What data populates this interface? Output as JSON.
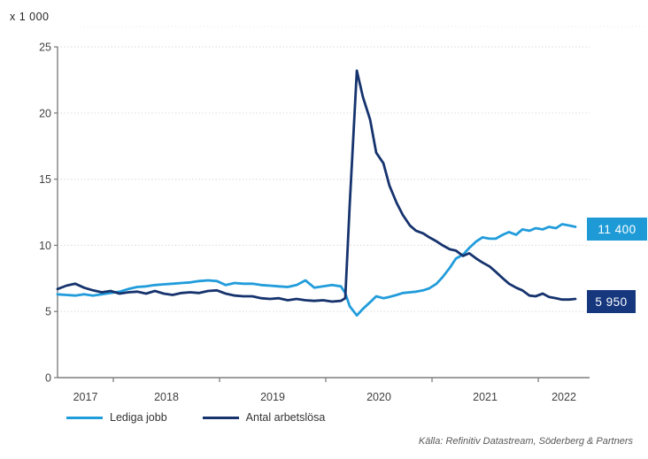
{
  "chart": {
    "unit_label": "x 1 000",
    "legend": [
      {
        "label": "Lediga jobb",
        "color": "#219CDB"
      },
      {
        "label": "Antal arbetslösa",
        "color": "#16336E"
      }
    ],
    "end_labels": [
      {
        "text": "11 400",
        "bg": "#1E9BD7"
      },
      {
        "text": "5 950",
        "bg": "#16377E"
      }
    ],
    "source": "Källa: Refinitiv Datastream, Söderberg & Partners"
  },
  "chart_data": {
    "type": "line",
    "title": "",
    "ylabel": "x 1 000",
    "xlabel": "",
    "grid": "horizontal-dotted",
    "legend_position": "bottom-left",
    "xlim": [
      2017.475,
      2022.483
    ],
    "ylim": [
      0,
      25
    ],
    "yticks": [
      0,
      5,
      10,
      15,
      20,
      25
    ],
    "xticks": [
      2018,
      2019,
      2020,
      2021,
      2022
    ],
    "xtick_labels": [
      "2017",
      "2018",
      "2019",
      "2020",
      "2021",
      "2022"
    ],
    "x": [
      2017.475,
      2017.558,
      2017.642,
      2017.725,
      2017.808,
      2017.892,
      2017.975,
      2018.058,
      2018.142,
      2018.225,
      2018.308,
      2018.392,
      2018.475,
      2018.558,
      2018.642,
      2018.725,
      2018.808,
      2018.892,
      2018.975,
      2019.058,
      2019.142,
      2019.225,
      2019.308,
      2019.392,
      2019.475,
      2019.558,
      2019.642,
      2019.725,
      2019.808,
      2019.892,
      2019.975,
      2020.058,
      2020.142,
      2020.183,
      2020.225,
      2020.292,
      2020.35,
      2020.417,
      2020.475,
      2020.542,
      2020.6,
      2020.667,
      2020.725,
      2020.792,
      2020.85,
      2020.917,
      2020.975,
      2021.042,
      2021.1,
      2021.167,
      2021.225,
      2021.292,
      2021.35,
      2021.417,
      2021.475,
      2021.542,
      2021.6,
      2021.667,
      2021.725,
      2021.792,
      2021.85,
      2021.917,
      2021.975,
      2022.042,
      2022.1,
      2022.167,
      2022.225,
      2022.292,
      2022.35
    ],
    "series": [
      {
        "name": "Lediga jobb",
        "color": "#219CDB",
        "end_label": "11 400",
        "values": [
          6.3,
          6.25,
          6.2,
          6.3,
          6.2,
          6.3,
          6.4,
          6.5,
          6.7,
          6.85,
          6.9,
          7.0,
          7.05,
          7.1,
          7.15,
          7.2,
          7.3,
          7.35,
          7.3,
          7.0,
          7.15,
          7.1,
          7.1,
          7.0,
          6.95,
          6.9,
          6.85,
          7.0,
          7.35,
          6.8,
          6.9,
          7.0,
          6.9,
          6.4,
          5.4,
          4.7,
          5.2,
          5.7,
          6.15,
          6.0,
          6.1,
          6.25,
          6.4,
          6.45,
          6.5,
          6.6,
          6.75,
          7.1,
          7.6,
          8.3,
          9.0,
          9.3,
          9.8,
          10.3,
          10.6,
          10.5,
          10.5,
          10.8,
          11.0,
          10.8,
          11.2,
          11.1,
          11.3,
          11.2,
          11.4,
          11.3,
          11.6,
          11.5,
          11.4
        ]
      },
      {
        "name": "Antal arbetslösa",
        "color": "#16336E",
        "end_label": "5 950",
        "values": [
          6.7,
          6.95,
          7.1,
          6.8,
          6.6,
          6.45,
          6.55,
          6.35,
          6.45,
          6.5,
          6.35,
          6.55,
          6.35,
          6.25,
          6.4,
          6.45,
          6.4,
          6.55,
          6.6,
          6.35,
          6.2,
          6.15,
          6.15,
          6.0,
          5.95,
          6.0,
          5.85,
          5.95,
          5.85,
          5.8,
          5.85,
          5.75,
          5.8,
          6.0,
          13.0,
          23.2,
          21.2,
          19.5,
          17.0,
          16.2,
          14.5,
          13.2,
          12.3,
          11.5,
          11.1,
          10.9,
          10.6,
          10.3,
          10.0,
          9.7,
          9.6,
          9.2,
          9.4,
          9.0,
          8.7,
          8.4,
          8.0,
          7.5,
          7.1,
          6.8,
          6.6,
          6.2,
          6.15,
          6.35,
          6.1,
          6.0,
          5.9,
          5.9,
          5.95
        ]
      }
    ],
    "source": "Källa: Refinitiv Datastream, Söderberg & Partners"
  }
}
